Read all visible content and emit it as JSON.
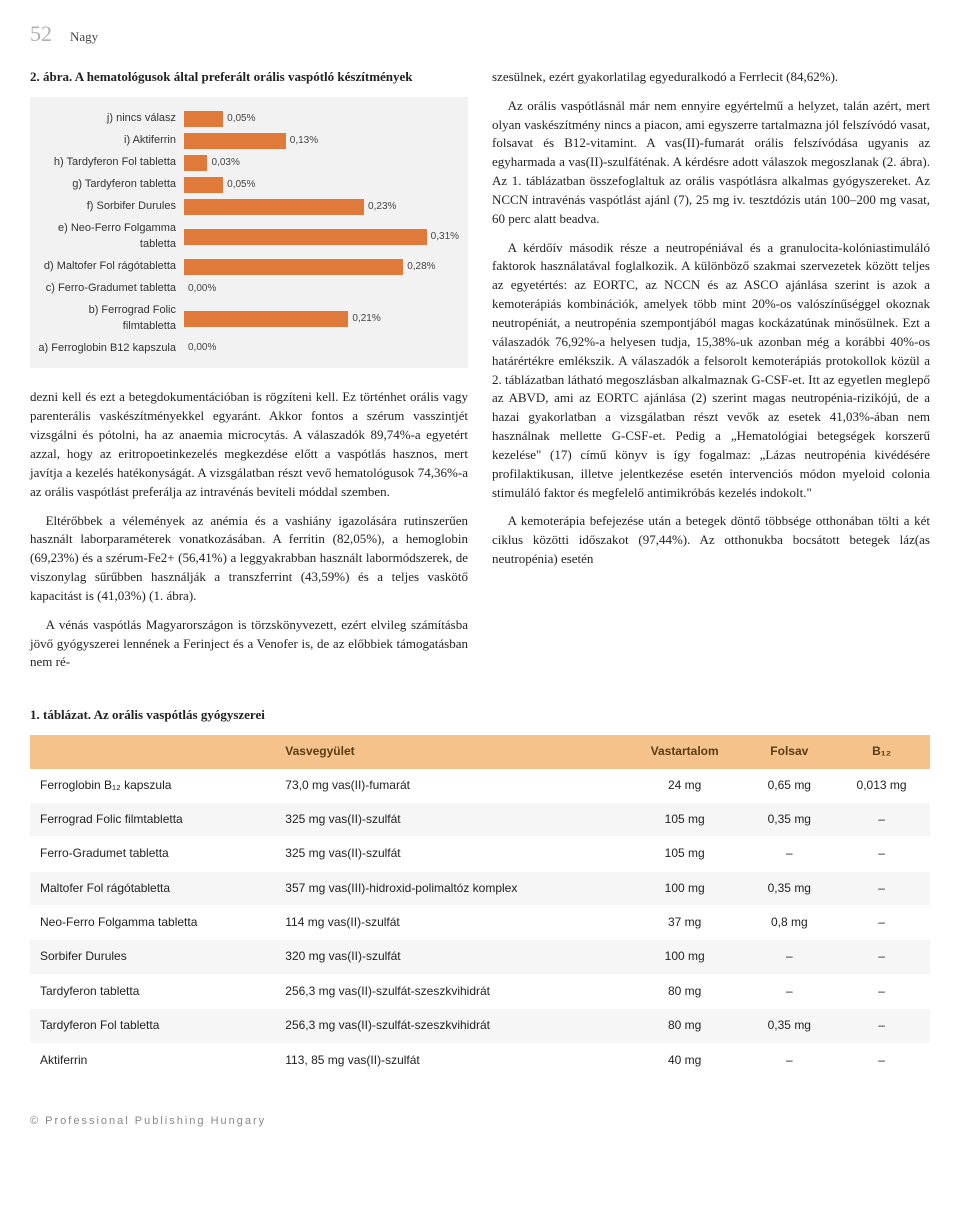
{
  "header": {
    "page_number": "52",
    "author": "Nagy"
  },
  "figure": {
    "caption_strong": "2. ábra.",
    "caption_rest": " A hematológusok által preferált orális vaspótló készítmények",
    "type": "bar",
    "bg_color": "#f2f2f2",
    "bar_colors": [
      "#e07a3a",
      "#e07a3a",
      "#e07a3a",
      "#e07a3a",
      "#e07a3a",
      "#e07a3a",
      "#e07a3a",
      "#e07a3a",
      "#e07a3a",
      "#e07a3a"
    ],
    "categories": [
      "j) nincs válasz",
      "i) Aktiferrin",
      "h) Tardyferon Fol tabletta",
      "g) Tardyferon tabletta",
      "f) Sorbifer Durules",
      "e) Neo-Ferro Folgamma tabletta",
      "d) Maltofer Fol rágótabletta",
      "c) Ferro-Gradumet tabletta",
      "b) Ferrograd Folic filmtabletta",
      "a) Ferroglobin B12 kapszula"
    ],
    "values_pct": [
      5,
      13,
      3,
      5,
      23,
      31,
      28,
      0,
      21,
      0
    ],
    "value_labels": [
      "0,05%",
      "0,13%",
      "0,03%",
      "0,05%",
      "0,23%",
      "0,31%",
      "0,28%",
      "0,00%",
      "0,21%",
      "0,00%"
    ],
    "xlim_max_pct": 35,
    "label_fontsize": 11,
    "value_fontsize": 10
  },
  "left_col_paras": [
    "dezni kell és ezt a betegdokumentációban is rögzíteni kell. Ez történhet orális vagy parenterális vaskészítményekkel egyaránt. Akkor fontos a szérum vasszintjét vizsgálni és pótolni, ha az anaemia microcytás. A válaszadók 89,74%-a egyetért azzal, hogy az eritropoetinkezelés megkezdése előtt a vaspótlás hasznos, mert javítja a kezelés hatékonyságát. A vizsgálatban részt vevő hematológusok 74,36%-a az orális vaspótlást preferálja az intravénás beviteli móddal szemben.",
    "Eltérőbbek a vélemények az anémia és a vashiány igazolására rutinszerűen használt laborparaméterek vonatkozásában. A ferritin (82,05%), a hemoglobin (69,23%) és a szérum-Fe2+ (56,41%) a leggyakrabban használt labormódszerek, de viszonylag sűrűbben használják a transzferrint (43,59%) és a teljes vaskötő kapacitást is (41,03%) (1. ábra).",
    "A vénás vaspótlás Magyarországon is törzskönyvezett, ezért elvileg számításba jövő gyógyszerei lennének a Ferinject és a Venofer is, de az előbbiek támogatásban nem ré-"
  ],
  "right_col_paras": [
    "szesülnek, ezért gyakorlatilag egyeduralkodó a Ferrlecit (84,62%).",
    "Az orális vaspótlásnál már nem ennyire egyértelmű a helyzet, talán azért, mert olyan vaskészítmény nincs a piacon, ami egyszerre tartalmazna jól felszívódó vasat, folsavat és B12-vitamint. A vas(II)-fumarát orális felszívódása ugyanis az egyharmada a vas(II)-szulfáténak. A kérdésre adott válaszok megoszlanak (2. ábra). Az 1. táblázatban összefoglaltuk az orális vaspótlásra alkalmas gyógyszereket. Az NCCN intravénás vaspótlást ajánl (7), 25 mg iv. tesztdózis után 100–200 mg vasat, 60 perc alatt beadva.",
    "A kérdőív második része a neutropéniával és a granulocita-kolóniastimuláló faktorok használatával foglalkozik. A különböző szakmai szervezetek között teljes az egyetértés: az EORTC, az NCCN és az ASCO ajánlása szerint is azok a kemoterápiás kombinációk, amelyek több mint 20%-os valószínűséggel okoznak neutropéniát, a neutropénia szempontjából magas kockázatúnak minősülnek. Ezt a válaszadók 76,92%-a helyesen tudja, 15,38%-uk azonban még a korábbi 40%-os határértékre emlékszik. A válaszadók a felsorolt kemoterápiás protokollok közül a 2. táblázatban látható megoszlásban alkalmaznak G-CSF-et. Itt az egyetlen meglepő az ABVD, ami az EORTC ajánlása (2) szerint magas neutropénia-rizikójú, de a hazai gyakorlatban a vizsgálatban részt vevők az esetek 41,03%-ában nem használnak mellette G-CSF-et. Pedig a „Hematológiai betegségek korszerű kezelése\" (17) című könyv is így fogalmaz: „Lázas neutropénia kivédésére profilaktikusan, illetve jelentkezése esetén intervenciós módon myeloid colonia stimuláló faktor és megfelelő antimikróbás kezelés indokolt.\"",
    "A kemoterápia befejezése után a betegek döntő többsége otthonában tölti a két ciklus közötti időszakot (97,44%). Az otthonukba bocsátott betegek láz(as neutropénia) esetén"
  ],
  "table": {
    "caption_strong": "1. táblázat.",
    "caption_rest": " Az orális vaspótlás gyógyszerei",
    "header_bg": "#f5c28c",
    "header_color": "#5a3c12",
    "row_even_bg": "#f6f6f6",
    "row_odd_bg": "#ffffff",
    "columns": [
      "",
      "Vasvegyület",
      "Vastartalom",
      "Folsav",
      "B₁₂"
    ],
    "rows": [
      [
        "Ferroglobin B₁₂ kapszula",
        "73,0 mg vas(II)-fumarát",
        "24 mg",
        "0,65 mg",
        "0,013 mg"
      ],
      [
        "Ferrograd Folic filmtabletta",
        "325 mg vas(II)-szulfát",
        "105 mg",
        "0,35 mg",
        "–"
      ],
      [
        "Ferro-Gradumet tabletta",
        "325 mg vas(II)-szulfát",
        "105 mg",
        "–",
        "–"
      ],
      [
        "Maltofer Fol rágótabletta",
        "357 mg vas(III)-hidroxid-polimaltóz komplex",
        "100 mg",
        "0,35 mg",
        "–"
      ],
      [
        "Neo-Ferro Folgamma tabletta",
        "114 mg vas(II)-szulfát",
        "37 mg",
        "0,8 mg",
        "–"
      ],
      [
        "Sorbifer Durules",
        "320 mg vas(II)-szulfát",
        "100 mg",
        "–",
        "–"
      ],
      [
        "Tardyferon tabletta",
        "256,3 mg vas(II)-szulfát-szeszkvihidrát",
        "80 mg",
        "–",
        "–"
      ],
      [
        "Tardyferon Fol tabletta",
        "256,3 mg vas(II)-szulfát-szeszkvihidrát",
        "80 mg",
        "0,35 mg",
        "–"
      ],
      [
        "Aktiferrin",
        "113, 85 mg vas(II)-szulfát",
        "40 mg",
        "–",
        "–"
      ]
    ]
  },
  "publisher": "© Professional Publishing Hungary"
}
